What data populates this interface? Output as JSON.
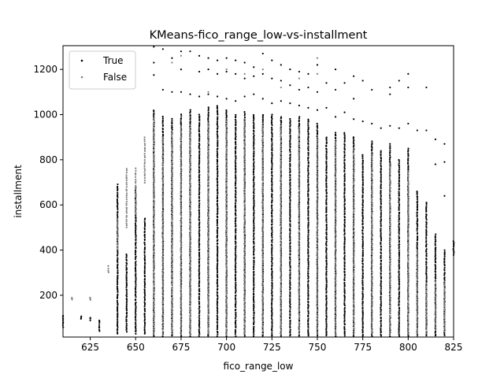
{
  "chart_data": {
    "type": "scatter",
    "title": "KMeans-fico_range_low-vs-installment",
    "xlabel": "fico_range_low",
    "ylabel": "installment",
    "xlim": [
      610,
      825
    ],
    "ylim": [
      15,
      1305
    ],
    "xticks": [
      625,
      650,
      675,
      700,
      725,
      750,
      775,
      800,
      825
    ],
    "yticks": [
      200,
      400,
      600,
      800,
      1000,
      1200
    ],
    "xtick_labels": [
      "625",
      "650",
      "675",
      "700",
      "725",
      "750",
      "775",
      "800",
      "825"
    ],
    "ytick_labels": [
      "200",
      "400",
      "600",
      "800",
      "1000",
      "1200"
    ],
    "grid": false,
    "legend_position": "top-left",
    "x_values": [
      610,
      615,
      620,
      625,
      630,
      635,
      640,
      645,
      650,
      655,
      660,
      665,
      670,
      675,
      680,
      685,
      690,
      695,
      700,
      705,
      710,
      715,
      720,
      725,
      730,
      735,
      740,
      745,
      750,
      755,
      760,
      765,
      770,
      775,
      780,
      785,
      790,
      795,
      800,
      805,
      810,
      815,
      820,
      825
    ],
    "series": [
      {
        "name": "True",
        "color": "#000000",
        "columns": [
          {
            "x": 610,
            "ranges": [
              [
                60,
                110
              ]
            ]
          },
          {
            "x": 620,
            "ranges": [
              [
                95,
                105
              ]
            ]
          },
          {
            "x": 625,
            "ranges": [
              [
                90,
                100
              ]
            ]
          },
          {
            "x": 630,
            "ranges": [
              [
                40,
                90
              ]
            ]
          },
          {
            "x": 640,
            "ranges": [
              [
                30,
                690
              ]
            ]
          },
          {
            "x": 645,
            "ranges": [
              [
                40,
                380
              ]
            ]
          },
          {
            "x": 650,
            "ranges": [
              [
                30,
                680
              ]
            ]
          },
          {
            "x": 655,
            "ranges": [
              [
                30,
                540
              ]
            ]
          },
          {
            "x": 660,
            "ranges": [
              [
                20,
                1020
              ]
            ],
            "extras": [
              1300,
              1230,
              1175
            ]
          },
          {
            "x": 665,
            "ranges": [
              [
                20,
                990
              ]
            ],
            "extras": [
              1290,
              1110
            ]
          },
          {
            "x": 670,
            "ranges": [
              [
                20,
                980
              ]
            ],
            "extras": [
              1250,
              1100
            ]
          },
          {
            "x": 675,
            "ranges": [
              [
                20,
                1000
              ]
            ],
            "extras": [
              1280,
              1200,
              1100
            ]
          },
          {
            "x": 680,
            "ranges": [
              [
                20,
                1020
              ]
            ],
            "extras": [
              1280,
              1090
            ]
          },
          {
            "x": 685,
            "ranges": [
              [
                20,
                1000
              ]
            ],
            "extras": [
              1260,
              1190,
              1080
            ]
          },
          {
            "x": 690,
            "ranges": [
              [
                20,
                1030
              ]
            ],
            "extras": [
              1250,
              1200,
              1090
            ]
          },
          {
            "x": 695,
            "ranges": [
              [
                20,
                1040
              ]
            ],
            "extras": [
              1240,
              1180,
              1080
            ]
          },
          {
            "x": 700,
            "ranges": [
              [
                20,
                1020
              ]
            ],
            "extras": [
              1250,
              1190,
              1070
            ]
          },
          {
            "x": 705,
            "ranges": [
              [
                20,
                1000
              ]
            ],
            "extras": [
              1240,
              1180,
              1060
            ]
          },
          {
            "x": 710,
            "ranges": [
              [
                20,
                1010
              ]
            ],
            "extras": [
              1230,
              1160,
              1080
            ]
          },
          {
            "x": 715,
            "ranges": [
              [
                20,
                1000
              ]
            ],
            "extras": [
              1210,
              1170,
              1090
            ]
          },
          {
            "x": 720,
            "ranges": [
              [
                20,
                1000
              ]
            ],
            "extras": [
              1270,
              1180,
              1070
            ]
          },
          {
            "x": 725,
            "ranges": [
              [
                20,
                1000
              ]
            ],
            "extras": [
              1240,
              1160,
              1050
            ]
          },
          {
            "x": 730,
            "ranges": [
              [
                20,
                990
              ]
            ],
            "extras": [
              1220,
              1150,
              1060
            ]
          },
          {
            "x": 735,
            "ranges": [
              [
                20,
                980
              ]
            ],
            "extras": [
              1200,
              1130,
              1050
            ]
          },
          {
            "x": 740,
            "ranges": [
              [
                20,
                990
              ]
            ],
            "extras": [
              1190,
              1110,
              1040
            ]
          },
          {
            "x": 745,
            "ranges": [
              [
                20,
                980
              ]
            ],
            "extras": [
              1180,
              1120,
              1030
            ]
          },
          {
            "x": 750,
            "ranges": [
              [
                20,
                960
              ]
            ],
            "extras": [
              1220,
              1100,
              1020
            ]
          },
          {
            "x": 755,
            "ranges": [
              [
                20,
                900
              ]
            ],
            "extras": [
              1140,
              1030
            ]
          },
          {
            "x": 760,
            "ranges": [
              [
                20,
                920
              ]
            ],
            "extras": [
              1200,
              1110,
              990
            ]
          },
          {
            "x": 765,
            "ranges": [
              [
                20,
                920
              ]
            ],
            "extras": [
              1140,
              1010
            ]
          },
          {
            "x": 770,
            "ranges": [
              [
                20,
                900
              ]
            ],
            "extras": [
              1170,
              1070,
              980
            ]
          },
          {
            "x": 775,
            "ranges": [
              [
                20,
                820
              ]
            ],
            "extras": [
              1150,
              970
            ]
          },
          {
            "x": 780,
            "ranges": [
              [
                20,
                880
              ]
            ],
            "extras": [
              1110,
              960
            ]
          },
          {
            "x": 785,
            "ranges": [
              [
                20,
                840
              ]
            ],
            "extras": [
              940
            ]
          },
          {
            "x": 790,
            "ranges": [
              [
                20,
                870
              ]
            ],
            "extras": [
              1120,
              1090,
              950
            ]
          },
          {
            "x": 795,
            "ranges": [
              [
                20,
                800
              ]
            ],
            "extras": [
              1150,
              940
            ]
          },
          {
            "x": 800,
            "ranges": [
              [
                20,
                850
              ]
            ],
            "extras": [
              1180,
              1120,
              960
            ]
          },
          {
            "x": 805,
            "ranges": [
              [
                20,
                660
              ]
            ],
            "extras": [
              930
            ]
          },
          {
            "x": 810,
            "ranges": [
              [
                20,
                610
              ]
            ],
            "extras": [
              1120,
              930
            ]
          },
          {
            "x": 815,
            "ranges": [
              [
                20,
                470
              ]
            ],
            "extras": [
              890,
              780
            ]
          },
          {
            "x": 820,
            "ranges": [
              [
                20,
                400
              ]
            ],
            "extras": [
              870,
              790,
              640
            ]
          },
          {
            "x": 825,
            "ranges": [
              [
                380,
                440
              ]
            ]
          }
        ]
      },
      {
        "name": "False",
        "color": "#808080",
        "columns": [
          {
            "x": 615,
            "ranges": [
              [
                180,
                190
              ]
            ]
          },
          {
            "x": 625,
            "ranges": [
              [
                180,
                190
              ]
            ]
          },
          {
            "x": 635,
            "ranges": [
              [
                300,
                330
              ]
            ]
          },
          {
            "x": 640,
            "ranges": [
              [
                400,
                540
              ]
            ]
          },
          {
            "x": 645,
            "ranges": [
              [
                500,
                760
              ]
            ]
          },
          {
            "x": 650,
            "ranges": [
              [
                560,
                760
              ]
            ]
          },
          {
            "x": 655,
            "ranges": [
              [
                700,
                900
              ]
            ]
          },
          {
            "x": 660,
            "ranges": [
              [
                30,
                980
              ]
            ]
          },
          {
            "x": 665,
            "ranges": [
              [
                30,
                900
              ]
            ]
          },
          {
            "x": 670,
            "ranges": [
              [
                30,
                920
              ]
            ],
            "extras": [
              1230
            ]
          },
          {
            "x": 675,
            "ranges": [
              [
                30,
                950
              ]
            ],
            "extras": [
              1260
            ]
          },
          {
            "x": 680,
            "ranges": [
              [
                30,
                940
              ]
            ]
          },
          {
            "x": 690,
            "ranges": [
              [
                30,
                960
              ]
            ],
            "extras": [
              1100
            ]
          },
          {
            "x": 700,
            "ranges": [
              [
                30,
                970
              ]
            ],
            "extras": [
              1200
            ]
          },
          {
            "x": 710,
            "ranges": [
              [
                30,
                980
              ]
            ],
            "extras": [
              1180
            ]
          },
          {
            "x": 720,
            "ranges": [
              [
                30,
                960
              ]
            ],
            "extras": [
              1200
            ]
          },
          {
            "x": 730,
            "ranges": [
              [
                30,
                950
              ]
            ],
            "extras": [
              1120
            ]
          },
          {
            "x": 740,
            "ranges": [
              [
                30,
                940
              ]
            ],
            "extras": [
              1160
            ]
          },
          {
            "x": 750,
            "ranges": [
              [
                30,
                900
              ]
            ],
            "extras": [
              1250,
              1180
            ]
          },
          {
            "x": 760,
            "ranges": [
              [
                30,
                880
              ]
            ]
          },
          {
            "x": 770,
            "ranges": [
              [
                30,
                850
              ]
            ]
          },
          {
            "x": 780,
            "ranges": [
              [
                30,
                820
              ]
            ]
          },
          {
            "x": 790,
            "ranges": [
              [
                30,
                780
              ]
            ]
          },
          {
            "x": 800,
            "ranges": [
              [
                30,
                750
              ]
            ]
          },
          {
            "x": 805,
            "ranges": [
              [
                20,
                400
              ]
            ]
          },
          {
            "x": 810,
            "ranges": [
              [
                30,
                250
              ]
            ]
          },
          {
            "x": 815,
            "ranges": [
              [
                50,
                260
              ]
            ]
          },
          {
            "x": 820,
            "ranges": [
              [
                40,
                260
              ]
            ]
          }
        ]
      }
    ]
  }
}
